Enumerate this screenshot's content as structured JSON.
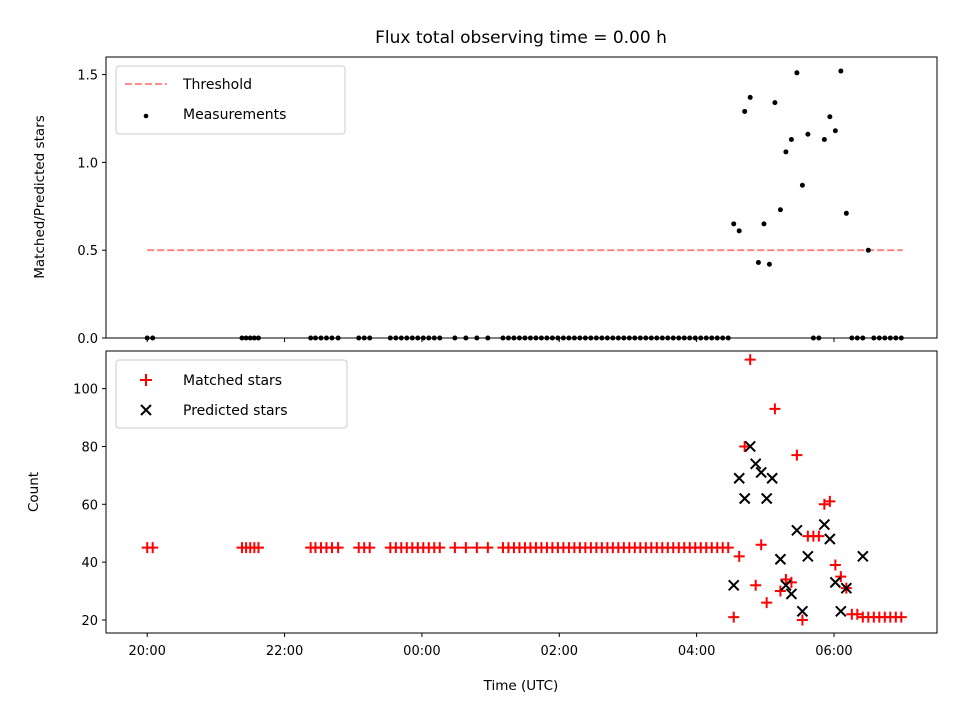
{
  "chart_data": {
    "type": "scatter",
    "title": "Flux total observing time = 0.00 h",
    "xlabel": "Time (UTC)",
    "x_unit": "hours relative to 00:00 UTC",
    "xlim": [
      -4.6,
      7.5
    ],
    "xticks": [
      {
        "value": -4,
        "label": "20:00"
      },
      {
        "value": -2,
        "label": "22:00"
      },
      {
        "value": 0,
        "label": "00:00"
      },
      {
        "value": 2,
        "label": "02:00"
      },
      {
        "value": 4,
        "label": "04:00"
      },
      {
        "value": 6,
        "label": "06:00"
      }
    ],
    "top": {
      "ylabel": "Matched/Predicted stars",
      "ylim": [
        0,
        1.6
      ],
      "yticks": [
        0,
        0.5,
        1.0,
        1.5
      ],
      "ytick_labels": [
        "0.0",
        "0.5",
        "1.0",
        "1.5"
      ],
      "legend_position": "top-left",
      "threshold": {
        "name": "Threshold",
        "value": 0.5,
        "x_range": [
          -4.0,
          7.0
        ],
        "color": "#ff7f7f"
      },
      "measurements": {
        "name": "Measurements",
        "color": "#000000",
        "x": [
          -4.0,
          -3.92,
          -2.62,
          -2.56,
          -2.5,
          -2.44,
          -2.38,
          -1.62,
          -1.55,
          -1.47,
          -1.39,
          -1.31,
          -1.22,
          -0.92,
          -0.84,
          -0.76,
          -0.46,
          -0.38,
          -0.3,
          -0.22,
          -0.14,
          -0.06,
          0.02,
          0.1,
          0.18,
          0.26,
          0.48,
          0.64,
          0.8,
          0.96,
          1.18,
          1.26,
          1.34,
          1.42,
          1.5,
          1.58,
          1.66,
          1.74,
          1.82,
          1.9,
          1.98,
          2.06,
          2.14,
          2.22,
          2.3,
          2.38,
          2.46,
          2.54,
          2.62,
          2.7,
          2.78,
          2.86,
          2.94,
          3.02,
          3.1,
          3.18,
          3.26,
          3.34,
          3.42,
          3.5,
          3.58,
          3.66,
          3.74,
          3.82,
          3.9,
          3.98,
          4.06,
          4.14,
          4.22,
          4.3,
          4.38,
          4.46,
          4.54,
          4.62,
          4.7,
          4.78,
          4.9,
          4.98,
          5.06,
          5.14,
          5.22,
          5.3,
          5.38,
          5.46,
          5.54,
          5.62,
          5.7,
          5.78,
          5.86,
          5.94,
          6.02,
          6.1,
          6.18,
          6.26,
          6.34,
          6.42,
          6.5,
          6.58,
          6.66,
          6.74,
          6.82,
          6.9,
          6.98
        ],
        "y": [
          0.0,
          0.0,
          0.0,
          0.0,
          0.0,
          0.0,
          0.0,
          0.0,
          0.0,
          0.0,
          0.0,
          0.0,
          0.0,
          0.0,
          0.0,
          0.0,
          0.0,
          0.0,
          0.0,
          0.0,
          0.0,
          0.0,
          0.0,
          0.0,
          0.0,
          0.0,
          0.0,
          0.0,
          0.0,
          0.0,
          0.0,
          0.0,
          0.0,
          0.0,
          0.0,
          0.0,
          0.0,
          0.0,
          0.0,
          0.0,
          0.0,
          0.0,
          0.0,
          0.0,
          0.0,
          0.0,
          0.0,
          0.0,
          0.0,
          0.0,
          0.0,
          0.0,
          0.0,
          0.0,
          0.0,
          0.0,
          0.0,
          0.0,
          0.0,
          0.0,
          0.0,
          0.0,
          0.0,
          0.0,
          0.0,
          0.0,
          0.0,
          0.0,
          0.0,
          0.0,
          0.0,
          0.0,
          0.65,
          0.61,
          1.29,
          1.37,
          0.43,
          0.65,
          0.42,
          1.34,
          0.73,
          1.06,
          1.13,
          1.51,
          0.87,
          1.16,
          0.0,
          0.0,
          1.13,
          1.26,
          1.18,
          1.52,
          0.71,
          0.0,
          0.0,
          0.0,
          0.5,
          0.0,
          0.0,
          0.0,
          0.0,
          0.0,
          0.0
        ]
      }
    },
    "bottom": {
      "ylabel": "Count",
      "ylim": [
        15.5,
        113
      ],
      "yticks": [
        20,
        40,
        60,
        80,
        100
      ],
      "ytick_labels": [
        "20",
        "40",
        "60",
        "80",
        "100"
      ],
      "legend_position": "top-left",
      "series": [
        {
          "name": "Matched stars",
          "marker": "+",
          "color": "#ff0000",
          "x": [
            -4.0,
            -3.92,
            -2.62,
            -2.56,
            -2.5,
            -2.44,
            -2.38,
            -1.62,
            -1.55,
            -1.47,
            -1.39,
            -1.31,
            -1.22,
            -0.92,
            -0.84,
            -0.76,
            -0.46,
            -0.38,
            -0.3,
            -0.22,
            -0.14,
            -0.06,
            0.02,
            0.1,
            0.18,
            0.26,
            0.48,
            0.64,
            0.8,
            0.96,
            1.18,
            1.26,
            1.34,
            1.42,
            1.5,
            1.58,
            1.66,
            1.74,
            1.82,
            1.9,
            1.98,
            2.06,
            2.14,
            2.22,
            2.3,
            2.38,
            2.46,
            2.54,
            2.62,
            2.7,
            2.78,
            2.86,
            2.94,
            3.02,
            3.1,
            3.18,
            3.26,
            3.34,
            3.42,
            3.5,
            3.58,
            3.66,
            3.74,
            3.82,
            3.9,
            3.98,
            4.06,
            4.14,
            4.22,
            4.3,
            4.38,
            4.46,
            4.54,
            4.62,
            4.7,
            4.78,
            4.86,
            4.94,
            5.02,
            5.14,
            5.22,
            5.3,
            5.38,
            5.46,
            5.54,
            5.62,
            5.7,
            5.78,
            5.86,
            5.94,
            6.02,
            6.1,
            6.18,
            6.26,
            6.34,
            6.42,
            6.5,
            6.58,
            6.66,
            6.74,
            6.82,
            6.9,
            6.98
          ],
          "y": [
            45,
            45,
            45,
            45,
            45,
            45,
            45,
            45,
            45,
            45,
            45,
            45,
            45,
            45,
            45,
            45,
            45,
            45,
            45,
            45,
            45,
            45,
            45,
            45,
            45,
            45,
            45,
            45,
            45,
            45,
            45,
            45,
            45,
            45,
            45,
            45,
            45,
            45,
            45,
            45,
            45,
            45,
            45,
            45,
            45,
            45,
            45,
            45,
            45,
            45,
            45,
            45,
            45,
            45,
            45,
            45,
            45,
            45,
            45,
            45,
            45,
            45,
            45,
            45,
            45,
            45,
            45,
            45,
            45,
            45,
            45,
            45,
            21,
            42,
            80,
            110,
            32,
            46,
            26,
            93,
            30,
            34,
            33,
            77,
            20,
            49,
            49,
            49,
            60,
            61,
            39,
            35,
            31,
            22,
            22,
            21,
            21,
            21,
            21,
            21,
            21,
            21,
            21
          ]
        },
        {
          "name": "Predicted stars",
          "marker": "x",
          "color": "#000000",
          "x": [
            4.54,
            4.62,
            4.7,
            4.78,
            4.86,
            4.94,
            5.02,
            5.1,
            5.22,
            5.3,
            5.38,
            5.46,
            5.54,
            5.62,
            5.86,
            5.94,
            6.02,
            6.1,
            6.18,
            6.42
          ],
          "y": [
            32,
            69,
            62,
            80,
            74,
            71,
            62,
            69,
            41,
            32,
            29,
            51,
            23,
            42,
            53,
            48,
            33,
            23,
            31,
            42
          ]
        }
      ]
    }
  }
}
